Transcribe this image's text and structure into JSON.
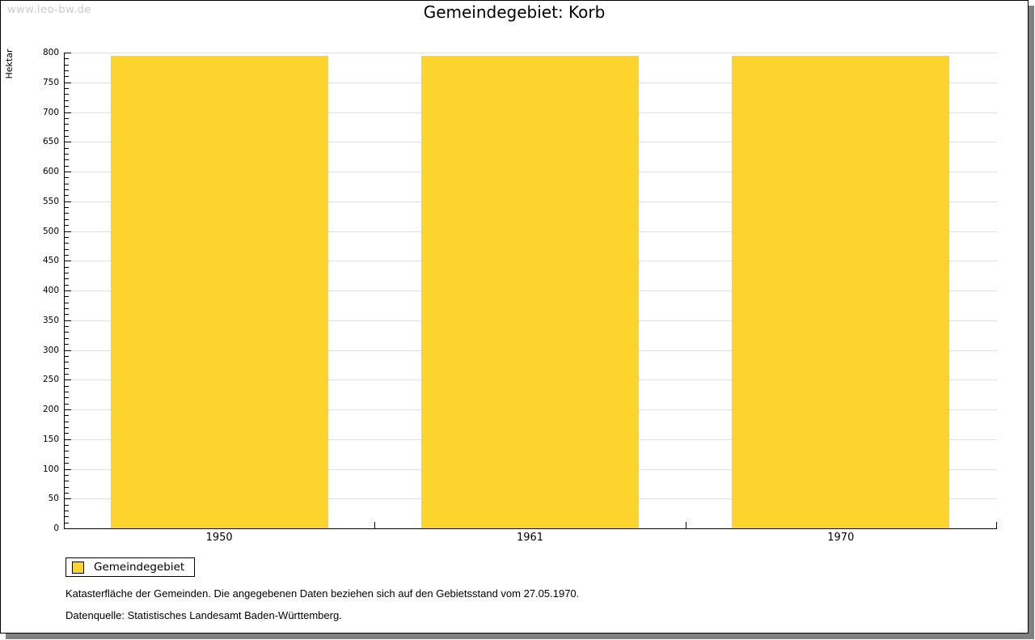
{
  "watermark": "www.leo-bw.de",
  "title": "Gemeindegebiet: Korb",
  "chart_data": {
    "type": "bar",
    "title": "Gemeindegebiet: Korb",
    "xlabel": "",
    "ylabel": "Hektar",
    "categories": [
      "1950",
      "1961",
      "1970"
    ],
    "series": [
      {
        "name": "Gemeindegebiet",
        "values": [
          795,
          795,
          795
        ]
      }
    ],
    "ylim": [
      0,
      800
    ],
    "ytick_step": 50,
    "yminor_step": 10,
    "grid": "horizontal-major",
    "legend_position": "bottom-left"
  },
  "legend": {
    "items": [
      {
        "label": "Gemeindegebiet",
        "color": "#FCD42D"
      }
    ]
  },
  "footnotes": [
    "Katasterfläche der Gemeinden. Die angegebenen Daten beziehen sich auf den Gebietsstand vom 27.05.1970.",
    "Datenquelle: Statistisches Landesamt Baden-Württemberg."
  ],
  "colors": {
    "bar": "#FCD42D",
    "grid": "#E0E0E0",
    "axis": "#000000",
    "watermark": "#CCCCCC",
    "frame_shadow": "#808080"
  }
}
